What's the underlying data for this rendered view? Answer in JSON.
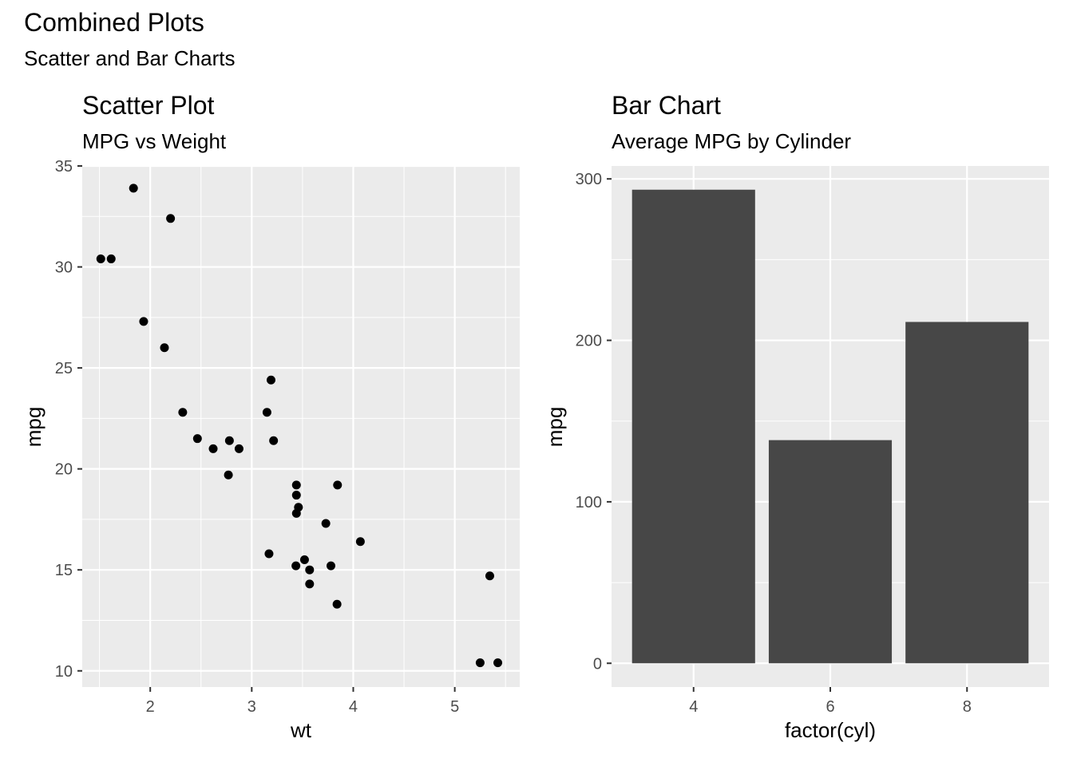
{
  "figure": {
    "title": "Combined Plots",
    "subtitle": "Scatter and Bar Charts"
  },
  "chart_data": [
    {
      "type": "scatter",
      "title": "Scatter Plot",
      "subtitle": "MPG vs Weight",
      "xlabel": "wt",
      "ylabel": "mpg",
      "xlim": [
        1.33,
        5.64
      ],
      "ylim": [
        9.2,
        35.0
      ],
      "xticks": [
        2,
        3,
        4,
        5
      ],
      "yticks": [
        10,
        15,
        20,
        25,
        30,
        35
      ],
      "grid": true,
      "point_color": "#000000",
      "points": [
        {
          "x": 1.835,
          "y": 33.9
        },
        {
          "x": 2.2,
          "y": 32.4
        },
        {
          "x": 1.513,
          "y": 30.4
        },
        {
          "x": 1.615,
          "y": 30.4
        },
        {
          "x": 1.935,
          "y": 27.3
        },
        {
          "x": 2.14,
          "y": 26.0
        },
        {
          "x": 3.19,
          "y": 24.4
        },
        {
          "x": 2.32,
          "y": 22.8
        },
        {
          "x": 3.15,
          "y": 22.8
        },
        {
          "x": 2.465,
          "y": 21.5
        },
        {
          "x": 2.78,
          "y": 21.4
        },
        {
          "x": 3.215,
          "y": 21.4
        },
        {
          "x": 2.62,
          "y": 21.0
        },
        {
          "x": 2.875,
          "y": 21.0
        },
        {
          "x": 2.77,
          "y": 19.7
        },
        {
          "x": 3.44,
          "y": 19.2
        },
        {
          "x": 3.845,
          "y": 19.2
        },
        {
          "x": 3.44,
          "y": 18.7
        },
        {
          "x": 3.46,
          "y": 18.1
        },
        {
          "x": 3.44,
          "y": 17.8
        },
        {
          "x": 3.73,
          "y": 17.3
        },
        {
          "x": 4.07,
          "y": 16.4
        },
        {
          "x": 3.17,
          "y": 15.8
        },
        {
          "x": 3.52,
          "y": 15.5
        },
        {
          "x": 3.435,
          "y": 15.2
        },
        {
          "x": 3.78,
          "y": 15.2
        },
        {
          "x": 3.57,
          "y": 15.0
        },
        {
          "x": 5.345,
          "y": 14.7
        },
        {
          "x": 3.57,
          "y": 14.3
        },
        {
          "x": 3.84,
          "y": 13.3
        },
        {
          "x": 5.25,
          "y": 10.4
        },
        {
          "x": 5.424,
          "y": 10.4
        }
      ]
    },
    {
      "type": "bar",
      "title": "Bar Chart",
      "subtitle": "Average MPG by Cylinder",
      "xlabel": "factor(cyl)",
      "ylabel": "mpg",
      "categories": [
        "4",
        "6",
        "8"
      ],
      "values": [
        293.3,
        138.2,
        211.4
      ],
      "ylim": [
        -14.7,
        308
      ],
      "yticks": [
        0,
        100,
        200,
        300
      ],
      "grid": true,
      "bar_color": "#474747"
    }
  ],
  "colors": {
    "panel_bg": "#ebebeb",
    "grid": "#ffffff",
    "tick_text": "#4d4d4d",
    "tick_mark": "#333333"
  }
}
